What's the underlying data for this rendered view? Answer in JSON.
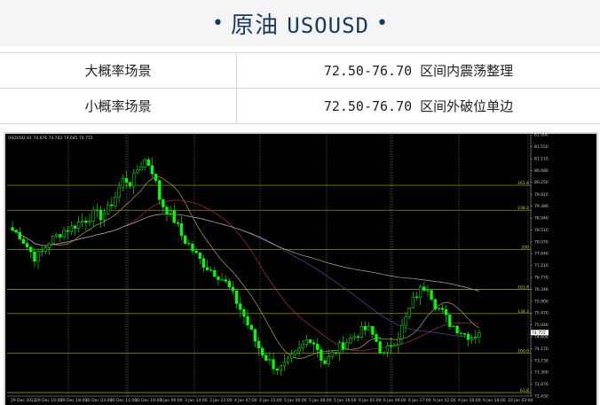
{
  "header": {
    "title": "原油",
    "symbol": "USOUSD"
  },
  "scenarios": [
    {
      "label": "大概率场景",
      "value": "72.50-76.70 区间内震荡整理"
    },
    {
      "label": "小概率场景",
      "value": "72.50-76.70 区间外破位单边"
    }
  ],
  "chart_data": {
    "type": "candlestick",
    "title": "USOUSD,H1 74.676 74.782 74.645 74.755",
    "current_price": "74.755",
    "ylim": [
      72.43,
      81.99
    ],
    "y_ticks": [
      "81.990",
      "81.550",
      "81.110",
      "80.680",
      "80.250",
      "79.810",
      "79.380",
      "78.940",
      "78.510",
      "78.070",
      "77.640",
      "77.210",
      "76.770",
      "76.340",
      "75.900",
      "75.470",
      "75.040",
      "74.600",
      "74.170",
      "73.730",
      "73.300",
      "72.870",
      "72.430"
    ],
    "x_ticks": [
      "29 Dec 2022",
      "29 Dec 10:00",
      "29 Dec 18:00",
      "30 Dec 03:00",
      "30 Dec 11:00",
      "30 Dec 19:00",
      "3 Jan 06:00",
      "3 Jan 14:00",
      "3 Jan 22:00",
      "4 Jan 07:00",
      "4 Jan 15:00",
      "5 Jan 00:00",
      "5 Jan 08:00",
      "5 Jan 16:00",
      "6 Jan 01:00",
      "6 Jan 09:00",
      "6 Jan 17:00",
      "9 Jan 02:00",
      "9 Jan 10:00",
      "9 Jan 18:00",
      "10 Jan 03:00"
    ],
    "fib_levels": [
      {
        "label": "261.8",
        "price": 80.14
      },
      {
        "label": "238.2",
        "price": 79.23
      },
      {
        "label": "200",
        "price": 77.8
      },
      {
        "label": "161.8",
        "price": 76.33
      },
      {
        "label": "138.2",
        "price": 75.45
      },
      {
        "label": "100.0",
        "price": 74.0
      },
      {
        "label": "61.8",
        "price": 72.56
      }
    ],
    "closes": [
      78.5,
      78.3,
      77.9,
      77.5,
      77.7,
      78.1,
      78.3,
      78.5,
      78.6,
      78.8,
      78.9,
      79.1,
      79.0,
      79.3,
      79.8,
      80.4,
      80.2,
      80.8,
      81.1,
      80.6,
      79.5,
      79.2,
      78.8,
      78.2,
      77.9,
      77.5,
      77.2,
      77.0,
      76.8,
      76.5,
      76.0,
      75.5,
      74.9,
      74.3,
      73.9,
      73.6,
      73.4,
      73.6,
      73.9,
      74.2,
      74.6,
      74.3,
      73.6,
      73.9,
      74.2,
      74.4,
      74.6,
      74.8,
      74.9,
      74.5,
      73.9,
      74.3,
      74.6,
      75.2,
      75.9,
      76.3,
      76.5,
      75.8,
      75.5,
      75.1,
      74.9,
      74.7,
      74.6,
      74.75
    ],
    "colors": {
      "bull": "#00ff00",
      "bear": "#00ff00",
      "background": "#000000",
      "fib": "#a8a832",
      "ma_gold": "#b8a040",
      "ma_red": "#b03030",
      "ma_blue": "#4050a0",
      "ma_tan": "#b8a890"
    }
  }
}
